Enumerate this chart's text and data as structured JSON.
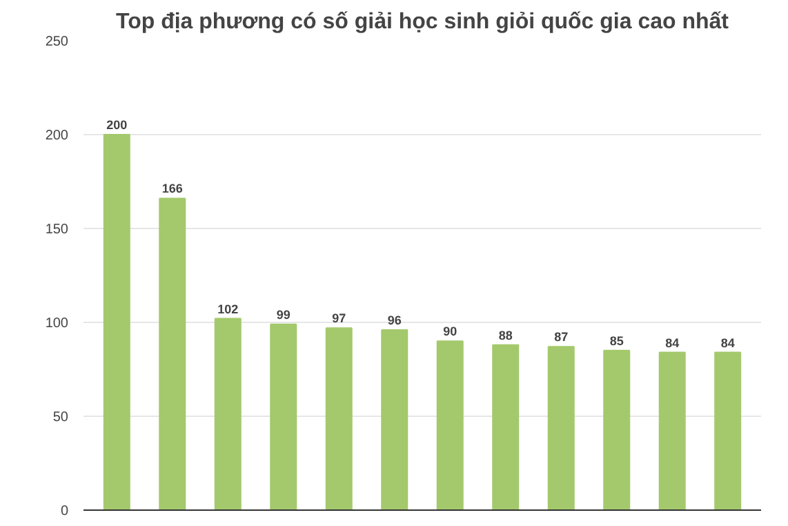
{
  "chart_data": {
    "type": "bar",
    "title": "Top địa phương có số giải học sinh giỏi quốc gia cao nhất",
    "categories": [
      null,
      null,
      null,
      null,
      null,
      null,
      null,
      null,
      null,
      null,
      null,
      null
    ],
    "values": [
      200,
      166,
      102,
      99,
      97,
      96,
      90,
      88,
      87,
      85,
      84,
      84
    ],
    "color": "#a4c96c",
    "ylim": [
      0,
      250
    ],
    "yticks": [
      0,
      50,
      100,
      150,
      200,
      250
    ],
    "grid": "y",
    "data_labels": true,
    "tick_labels": "y"
  }
}
